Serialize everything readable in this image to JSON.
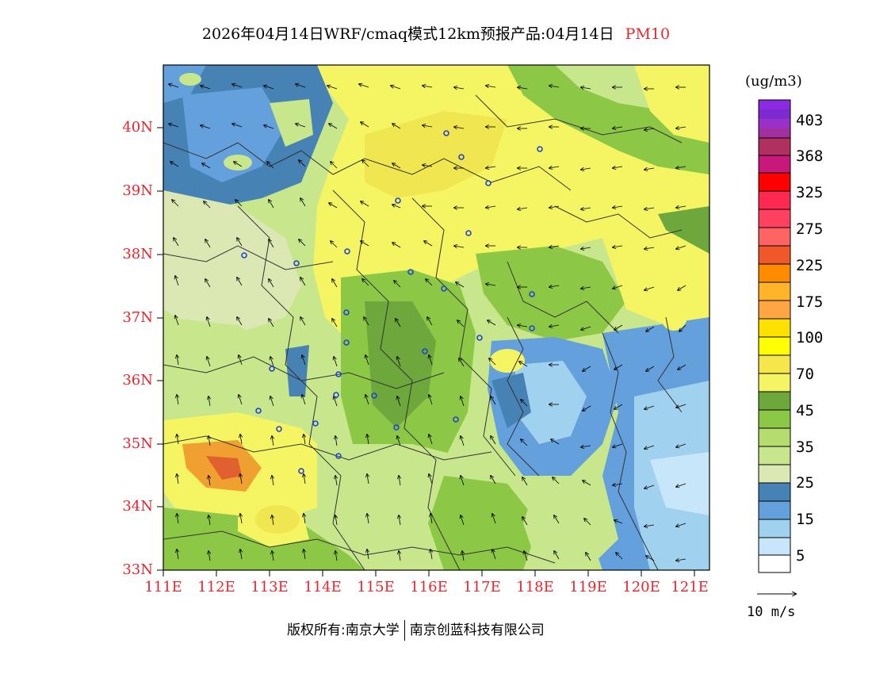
{
  "title": {
    "main": "2026年04月14日WRF/cmaq模式12km预报产品:04月14日",
    "variable": "PM10"
  },
  "axes": {
    "lat_labels": [
      "40N",
      "39N",
      "38N",
      "37N",
      "36N",
      "35N",
      "34N",
      "33N"
    ],
    "lon_labels": [
      "111E",
      "112E",
      "113E",
      "114E",
      "115E",
      "116E",
      "117E",
      "118E",
      "119E",
      "120E",
      "121E"
    ],
    "lat_range": [
      33,
      41
    ],
    "lon_range": [
      111,
      121.3
    ]
  },
  "legend": {
    "units": "(ug/m3)",
    "labels": [
      "403",
      "368",
      "325",
      "275",
      "225",
      "175",
      "100",
      "70",
      "45",
      "35",
      "25",
      "15",
      "5"
    ],
    "colors": [
      "#8a2be2",
      "#9b30c8",
      "#b03060",
      "#c8187a",
      "#ff0000",
      "#ff2850",
      "#ff6464",
      "#f0582a",
      "#ff8c00",
      "#ffb42a",
      "#ffa544",
      "#ffe100",
      "#ffff00",
      "#f5e64b",
      "#f5f564",
      "#6ea83c",
      "#8cc846",
      "#b4dc6e",
      "#c8e68c",
      "#dce8b4",
      "#4682b4",
      "#64a0dc",
      "#a0d2f0",
      "#c8e6fa",
      "#ffffff"
    ]
  },
  "vector_reference": {
    "label": "10 m/s"
  },
  "copyright": {
    "owner": "版权所有:南京大学",
    "partner": "南京创蓝科技有限公司"
  },
  "map_colors": {
    "background_light": "#f5f564",
    "yellow": "#f0e650",
    "light_green": "#c8e68c",
    "green": "#8cc846",
    "dark_green": "#6ea83c",
    "pale": "#dce8b4",
    "blue": "#4682b4",
    "mid_blue": "#64a0dc",
    "light_blue": "#a0d2f0",
    "pale_blue": "#c8e6fa",
    "orange": "#f0a030",
    "red_orange": "#e06030"
  }
}
